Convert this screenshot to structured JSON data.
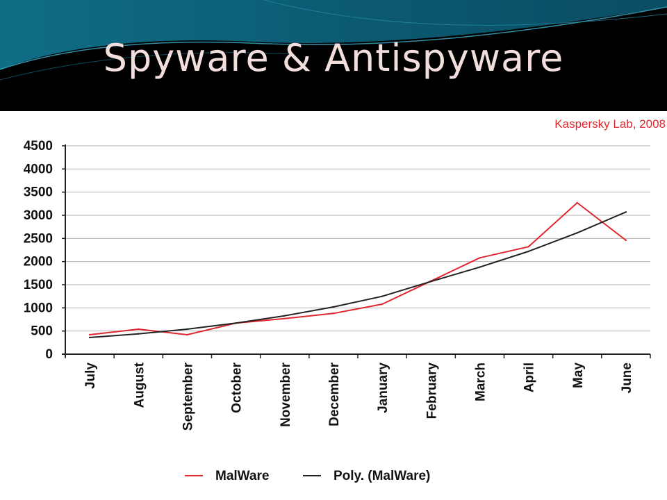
{
  "slide": {
    "title": "Spyware & Antispyware",
    "source_note": "Kaspersky Lab, 2008"
  },
  "colors": {
    "header_bg": "#000000",
    "header_wave": "#0b5b72",
    "title_text": "#f3dede",
    "malware_line": "#e0262e",
    "trend_line": "#222222",
    "source_note": "#e0262e"
  },
  "chart_data": {
    "type": "line",
    "title": "",
    "xlabel": "",
    "ylabel": "",
    "ylim": [
      0,
      4500
    ],
    "yticks": [
      0,
      500,
      1000,
      1500,
      2000,
      2500,
      3000,
      3500,
      4000,
      4500
    ],
    "grid": true,
    "legend_position": "bottom",
    "categories": [
      "July",
      "August",
      "September",
      "October",
      "November",
      "December",
      "January",
      "February",
      "March",
      "April",
      "May",
      "June"
    ],
    "series": [
      {
        "name": "MalWare",
        "color": "#e0262e",
        "values": [
          420,
          540,
          420,
          670,
          770,
          880,
          1080,
          1580,
          2080,
          2320,
          3270,
          2460
        ]
      },
      {
        "name": "Poly. (MalWare)",
        "color": "#222222",
        "values": [
          360,
          440,
          540,
          670,
          830,
          1020,
          1250,
          1570,
          1880,
          2220,
          2620,
          3070
        ]
      }
    ]
  }
}
